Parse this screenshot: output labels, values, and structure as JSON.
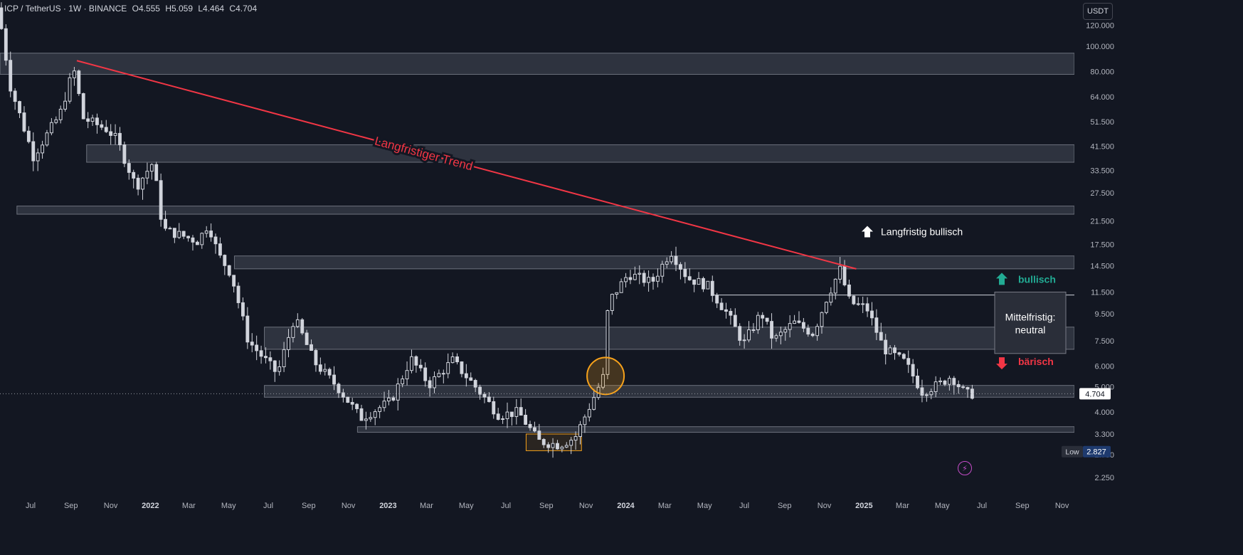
{
  "header": {
    "symbol": "ICP / TetherUS · 1W · BINANCE",
    "open": "O4.555",
    "high": "H5.059",
    "low": "L4.464",
    "close": "C4.704"
  },
  "toolbar": {
    "currency": "USDT"
  },
  "price_scale": {
    "ticks": [
      "120.000",
      "100.000",
      "80.000",
      "64.000",
      "51.500",
      "41.500",
      "33.500",
      "27.500",
      "21.500",
      "17.500",
      "14.500",
      "11.500",
      "9.500",
      "7.500",
      "6.000",
      "5.000",
      "4.000",
      "3.300",
      "2.750",
      "2.250"
    ],
    "current_price_label": "4.704",
    "low_label": "Low",
    "low_value": "2.827"
  },
  "time_scale": {
    "ticks": [
      "Jul",
      "Sep",
      "Nov",
      "2022",
      "Mar",
      "May",
      "Jul",
      "Sep",
      "Nov",
      "2023",
      "Mar",
      "May",
      "Jul",
      "Sep",
      "Nov",
      "2024",
      "Mar",
      "May",
      "Jul",
      "Sep",
      "Nov",
      "2025",
      "Mar",
      "May",
      "Jul",
      "Sep",
      "Nov"
    ]
  },
  "annotations": {
    "trend_label": "Langfristiger Trend",
    "longterm_bullish": "Langfristig bullisch",
    "bullish": "bullisch",
    "bearish": "bärisch",
    "midterm_line1": "Mittelfristig:",
    "midterm_line2": "neutral"
  },
  "colors": {
    "background": "#131722",
    "candle": "#d1d4dc",
    "trendline": "#f23645",
    "zone": "#3a3f4c",
    "highlight_circle": "#f7a21b",
    "bull_arrow": "#22ab94",
    "bear_arrow": "#f23645",
    "lightning": "#c54cc9"
  },
  "chart_data": {
    "type": "candlestick",
    "symbol": "ICP / TetherUS",
    "interval": "1W",
    "exchange": "BINANCE",
    "y_scale": "log",
    "ylim": [
      2.0,
      150
    ],
    "x_range": [
      "2021-05-15",
      "2025-11-20"
    ],
    "x_ticks": [
      "Jul",
      "Sep",
      "Nov",
      "2022",
      "Mar",
      "May",
      "Jul",
      "Sep",
      "Nov",
      "2023",
      "Mar",
      "May",
      "Jul",
      "Sep",
      "Nov",
      "2024",
      "Mar",
      "May",
      "Jul",
      "Sep",
      "Nov",
      "2025",
      "Mar",
      "May",
      "Jul",
      "Sep",
      "Nov"
    ],
    "y_ticks": [
      120,
      100,
      80,
      64,
      51.5,
      41.5,
      33.5,
      27.5,
      21.5,
      17.5,
      14.5,
      11.5,
      9.5,
      7.5,
      6,
      5,
      4,
      3.3,
      2.75,
      2.25
    ],
    "last": {
      "open": 4.555,
      "high": 5.059,
      "low": 4.464,
      "close": 4.704
    },
    "all_time_low_visible": 2.827,
    "trend_waypoints": [
      {
        "date": "2021-05-17",
        "close": 140
      },
      {
        "date": "2021-06-05",
        "close": 70
      },
      {
        "date": "2021-07-10",
        "close": 38
      },
      {
        "date": "2021-08-20",
        "close": 55
      },
      {
        "date": "2021-09-10",
        "close": 82
      },
      {
        "date": "2021-09-25",
        "close": 53
      },
      {
        "date": "2021-11-01",
        "close": 48
      },
      {
        "date": "2021-11-15",
        "close": 44
      },
      {
        "date": "2021-12-15",
        "close": 29
      },
      {
        "date": "2022-01-10",
        "close": 36
      },
      {
        "date": "2022-01-25",
        "close": 20
      },
      {
        "date": "2022-03-20",
        "close": 18
      },
      {
        "date": "2022-04-05",
        "close": 21
      },
      {
        "date": "2022-04-20",
        "close": 16
      },
      {
        "date": "2022-05-10",
        "close": 13.5
      },
      {
        "date": "2022-06-05",
        "close": 7.5
      },
      {
        "date": "2022-07-20",
        "close": 5.6
      },
      {
        "date": "2022-08-15",
        "close": 9.2
      },
      {
        "date": "2022-09-15",
        "close": 6.2
      },
      {
        "date": "2022-10-20",
        "close": 5.0
      },
      {
        "date": "2022-11-25",
        "close": 3.8
      },
      {
        "date": "2023-01-10",
        "close": 4.4
      },
      {
        "date": "2023-02-10",
        "close": 6.4
      },
      {
        "date": "2023-03-10",
        "close": 5.1
      },
      {
        "date": "2023-04-15",
        "close": 6.3
      },
      {
        "date": "2023-05-20",
        "close": 5.0
      },
      {
        "date": "2023-06-25",
        "close": 3.9
      },
      {
        "date": "2023-07-25",
        "close": 4.0
      },
      {
        "date": "2023-08-25",
        "close": 3.1
      },
      {
        "date": "2023-09-25",
        "close": 3.0
      },
      {
        "date": "2023-10-20",
        "close": 3.2
      },
      {
        "date": "2023-11-15",
        "close": 4.4
      },
      {
        "date": "2023-12-03",
        "close": 5.5
      },
      {
        "date": "2023-12-10",
        "close": 10.5
      },
      {
        "date": "2024-01-10",
        "close": 13.5
      },
      {
        "date": "2024-02-15",
        "close": 12.5
      },
      {
        "date": "2024-03-15",
        "close": 16.5
      },
      {
        "date": "2024-04-10",
        "close": 13.0
      },
      {
        "date": "2024-05-10",
        "close": 12.2
      },
      {
        "date": "2024-06-10",
        "close": 9.5
      },
      {
        "date": "2024-07-05",
        "close": 7.3
      },
      {
        "date": "2024-08-01",
        "close": 9.6
      },
      {
        "date": "2024-08-20",
        "close": 7.5
      },
      {
        "date": "2024-09-20",
        "close": 8.8
      },
      {
        "date": "2024-10-20",
        "close": 8.0
      },
      {
        "date": "2024-11-10",
        "close": 11.0
      },
      {
        "date": "2024-11-30",
        "close": 14.0
      },
      {
        "date": "2024-12-15",
        "close": 10.5
      },
      {
        "date": "2025-01-10",
        "close": 10.0
      },
      {
        "date": "2025-02-05",
        "close": 7.0
      },
      {
        "date": "2025-03-10",
        "close": 6.2
      },
      {
        "date": "2025-04-05",
        "close": 4.8
      },
      {
        "date": "2025-05-01",
        "close": 5.1
      },
      {
        "date": "2025-05-20",
        "close": 5.5
      },
      {
        "date": "2025-06-10",
        "close": 4.7
      }
    ],
    "zones": [
      {
        "from": "2021-05-15",
        "to": "2025-11-20",
        "low": 78,
        "high": 94
      },
      {
        "from": "2021-09-25",
        "to": "2025-11-20",
        "low": 36,
        "high": 42
      },
      {
        "from": "2021-06-10",
        "to": "2025-11-20",
        "low": 22.8,
        "high": 24.5
      },
      {
        "from": "2022-05-10",
        "to": "2025-11-20",
        "low": 14.1,
        "high": 15.8
      },
      {
        "from": "2022-06-25",
        "to": "2025-11-20",
        "low": 6.95,
        "high": 8.45
      },
      {
        "from": "2022-06-25",
        "to": "2025-11-20",
        "low": 4.56,
        "high": 5.06
      },
      {
        "from": "2022-11-15",
        "to": "2025-11-20",
        "low": 3.35,
        "high": 3.52
      },
      {
        "from": "2023-08-01",
        "to": "2023-10-25",
        "low": 2.85,
        "high": 3.3
      }
    ],
    "lines": [
      {
        "from": "2024-05-15",
        "to": "2025-11-20",
        "value": 11.2
      }
    ],
    "trendline": {
      "from": {
        "date": "2021-09-10",
        "value": 88
      },
      "to": {
        "date": "2024-12-20",
        "value": 14.1
      }
    },
    "highlight": {
      "date": "2023-12-01",
      "value": 5.5
    },
    "annotations": [
      "Langfristiger Trend",
      "Langfristig bullisch",
      "bullisch",
      "bärisch",
      "Mittelfristig: neutral"
    ]
  }
}
